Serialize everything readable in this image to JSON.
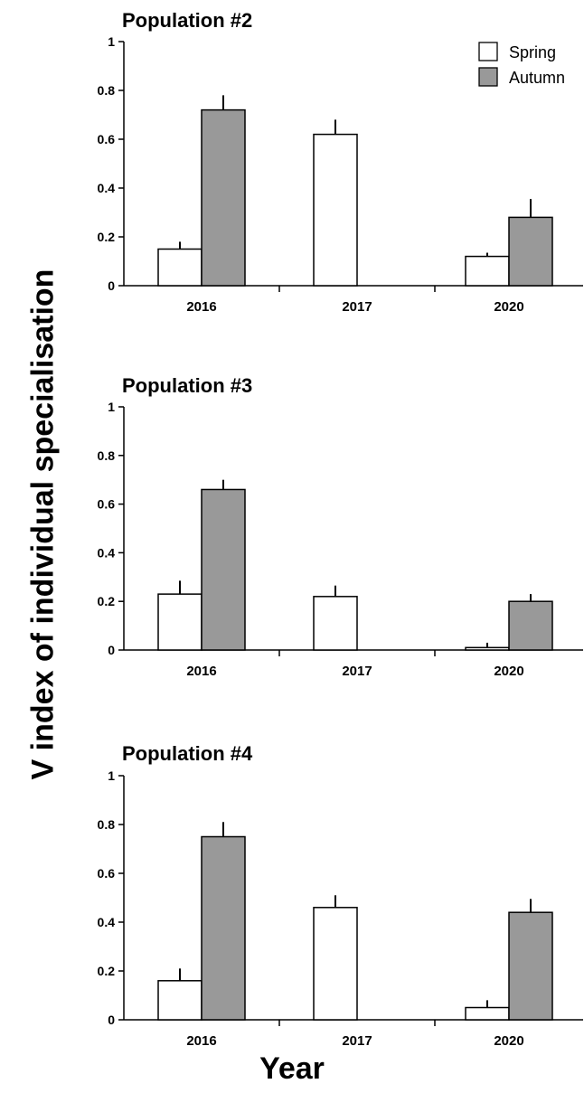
{
  "figure": {
    "ylabel": "V index of individual specialisation",
    "xlabel": "Year"
  },
  "colors": {
    "spring": "#ffffff",
    "autumn": "#999999",
    "stroke": "#000000"
  },
  "chart_data": [
    {
      "type": "bar",
      "title": "Population #2",
      "categories": [
        "2016",
        "2017",
        "2020"
      ],
      "ylim": [
        0,
        1
      ],
      "yticks": [
        0,
        0.2,
        0.4,
        0.6,
        0.8,
        1
      ],
      "ytick_labels": [
        "0",
        "0.2",
        "0.4",
        "0.6",
        "0.8",
        "1"
      ],
      "legend": {
        "placement": "top-right",
        "entries": [
          "Spring",
          "Autumn"
        ]
      },
      "series": [
        {
          "name": "Spring",
          "values": [
            0.15,
            0.62,
            0.12
          ],
          "errors": [
            0.03,
            0.06,
            0.015
          ]
        },
        {
          "name": "Autumn",
          "values": [
            0.72,
            null,
            0.28
          ],
          "errors": [
            0.06,
            null,
            0.075
          ]
        }
      ]
    },
    {
      "type": "bar",
      "title": "Population #3",
      "categories": [
        "2016",
        "2017",
        "2020"
      ],
      "ylim": [
        0,
        1
      ],
      "yticks": [
        0,
        0.2,
        0.4,
        0.6,
        0.8,
        1
      ],
      "ytick_labels": [
        "0",
        "0.2",
        "0.4",
        "0.6",
        "0.8",
        "1"
      ],
      "series": [
        {
          "name": "Spring",
          "values": [
            0.23,
            0.22,
            0.01
          ],
          "errors": [
            0.055,
            0.045,
            0.02
          ]
        },
        {
          "name": "Autumn",
          "values": [
            0.66,
            null,
            0.2
          ],
          "errors": [
            0.04,
            null,
            0.03
          ]
        }
      ]
    },
    {
      "type": "bar",
      "title": "Population #4",
      "categories": [
        "2016",
        "2017",
        "2020"
      ],
      "ylim": [
        0,
        1
      ],
      "yticks": [
        0,
        0.2,
        0.4,
        0.6,
        0.8,
        1
      ],
      "ytick_labels": [
        "0",
        "0.2",
        "0.4",
        "0.6",
        "0.8",
        "1"
      ],
      "series": [
        {
          "name": "Spring",
          "values": [
            0.16,
            0.46,
            0.05
          ],
          "errors": [
            0.05,
            0.05,
            0.03
          ]
        },
        {
          "name": "Autumn",
          "values": [
            0.75,
            null,
            0.44
          ],
          "errors": [
            0.06,
            null,
            0.055
          ]
        }
      ]
    }
  ]
}
